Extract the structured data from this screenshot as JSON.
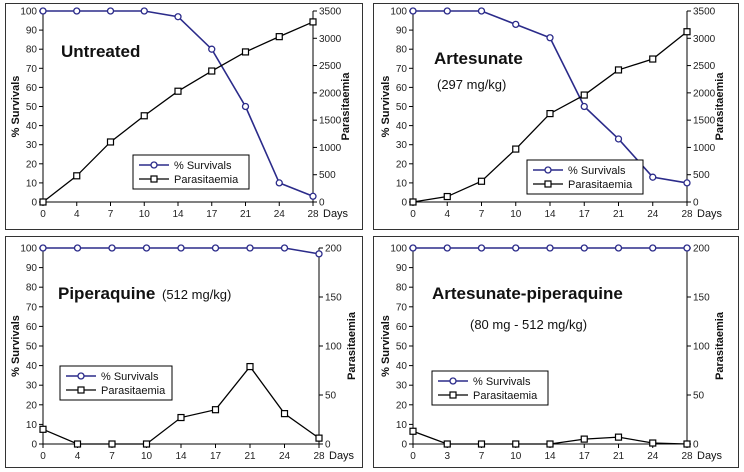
{
  "chart_data": [
    {
      "type": "line",
      "title": "Untreated",
      "subtitle": "",
      "ylabel_left": "% Survivals",
      "ylabel_right": "Parasitaemia",
      "xlabel": "Days",
      "x": [
        "0",
        "4",
        "7",
        "10",
        "14",
        "17",
        "21",
        "24",
        "28"
      ],
      "yleft_ticks": [
        "0",
        "10",
        "20",
        "30",
        "40",
        "50",
        "60",
        "70",
        "80",
        "90",
        "100"
      ],
      "yright_ticks": [
        "0",
        "500",
        "1000",
        "1500",
        "2000",
        "2500",
        "3000",
        "3500"
      ],
      "ylim_left": [
        0,
        100
      ],
      "ylim_right": [
        0,
        3500
      ],
      "legend": [
        "% Survivals",
        "Parasitaemia"
      ],
      "series": [
        {
          "name": "% Survivals",
          "axis": "left",
          "marker": "circle",
          "color": "#2b2b8a",
          "values": [
            100,
            100,
            100,
            100,
            97,
            80,
            50,
            10,
            3
          ]
        },
        {
          "name": "Parasitaemia",
          "axis": "right",
          "marker": "square",
          "color": "#000000",
          "values": [
            0,
            480,
            1100,
            1580,
            2030,
            2400,
            2750,
            3030,
            3300
          ]
        }
      ]
    },
    {
      "type": "line",
      "title": "Artesunate",
      "subtitle": "(297 mg/kg)",
      "ylabel_left": "% Survivals",
      "ylabel_right": "Parasitaemia",
      "xlabel": "Days",
      "x": [
        "0",
        "4",
        "7",
        "10",
        "14",
        "17",
        "21",
        "24",
        "28"
      ],
      "yleft_ticks": [
        "0",
        "10",
        "20",
        "30",
        "40",
        "50",
        "60",
        "70",
        "80",
        "90",
        "100"
      ],
      "yright_ticks": [
        "0",
        "500",
        "1000",
        "1500",
        "2000",
        "2500",
        "3000",
        "3500"
      ],
      "ylim_left": [
        0,
        100
      ],
      "ylim_right": [
        0,
        3500
      ],
      "legend": [
        "% Survivals",
        "Parasitaemia"
      ],
      "series": [
        {
          "name": "% Survivals",
          "axis": "left",
          "marker": "circle",
          "color": "#2b2b8a",
          "values": [
            100,
            100,
            100,
            93,
            86,
            50,
            33,
            13,
            10
          ]
        },
        {
          "name": "Parasitaemia",
          "axis": "right",
          "marker": "square",
          "color": "#000000",
          "values": [
            0,
            100,
            380,
            970,
            1620,
            1960,
            2420,
            2620,
            3120
          ]
        }
      ]
    },
    {
      "type": "line",
      "title": "Piperaquine",
      "subtitle": "(512 mg/kg)",
      "ylabel_left": "% Survivals",
      "ylabel_right": "Parasitaemia",
      "xlabel": "Days",
      "x": [
        "0",
        "4",
        "7",
        "10",
        "14",
        "17",
        "21",
        "24",
        "28"
      ],
      "yleft_ticks": [
        "0",
        "10",
        "20",
        "30",
        "40",
        "50",
        "60",
        "70",
        "80",
        "90",
        "100"
      ],
      "yright_ticks": [
        "0",
        "50",
        "100",
        "150",
        "200"
      ],
      "ylim_left": [
        0,
        100
      ],
      "ylim_right": [
        0,
        200
      ],
      "legend": [
        "% Survivals",
        "Parasitaemia"
      ],
      "series": [
        {
          "name": "% Survivals",
          "axis": "left",
          "marker": "circle",
          "color": "#2b2b8a",
          "values": [
            100,
            100,
            100,
            100,
            100,
            100,
            100,
            100,
            97
          ]
        },
        {
          "name": "Parasitaemia",
          "axis": "right",
          "marker": "square",
          "color": "#000000",
          "values": [
            15,
            0,
            0,
            0,
            27,
            35,
            79,
            31,
            6
          ]
        }
      ]
    },
    {
      "type": "line",
      "title": "Artesunate-piperaquine",
      "subtitle": "(80 mg - 512 mg/kg)",
      "ylabel_left": "% Survivals",
      "ylabel_right": "Parasitaemia",
      "xlabel": "Days",
      "x": [
        "0",
        "3",
        "7",
        "10",
        "14",
        "17",
        "21",
        "24",
        "28"
      ],
      "yleft_ticks": [
        "0",
        "10",
        "20",
        "30",
        "40",
        "50",
        "60",
        "70",
        "80",
        "90",
        "100"
      ],
      "yright_ticks": [
        "0",
        "50",
        "100",
        "150",
        "200"
      ],
      "ylim_left": [
        0,
        100
      ],
      "ylim_right": [
        0,
        200
      ],
      "legend": [
        "% Survivals",
        "Parasitaemia"
      ],
      "series": [
        {
          "name": "% Survivals",
          "axis": "left",
          "marker": "circle",
          "color": "#2b2b8a",
          "values": [
            100,
            100,
            100,
            100,
            100,
            100,
            100,
            100,
            100
          ]
        },
        {
          "name": "Parasitaemia",
          "axis": "right",
          "marker": "square",
          "color": "#000000",
          "values": [
            13,
            0,
            0,
            0,
            0,
            5,
            7,
            1,
            0
          ]
        }
      ]
    }
  ]
}
